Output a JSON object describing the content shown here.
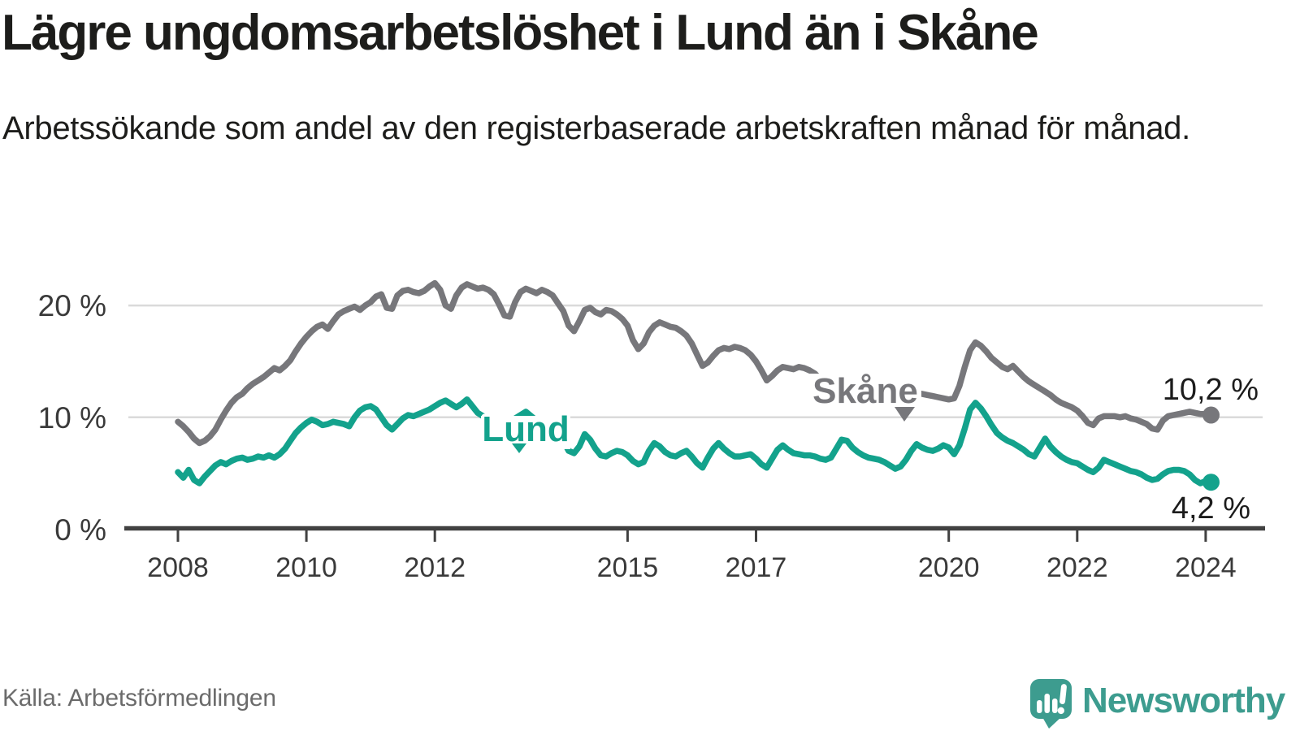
{
  "title": "Lägre ungdomsarbetslöshet i Lund än i Skåne",
  "subtitle": "Arbetssökande som andel av den registerbaserade arbetskraften månad för månad.",
  "source": "Källa: Arbetsförmedlingen",
  "logo": {
    "text": "Newsworthy",
    "color": "#3d9c8f",
    "icon": "speech-bubble-bar-chart-icon"
  },
  "colors": {
    "skane_line": "#77777b",
    "lund_line": "#13a28c",
    "gridline": "#dadada",
    "axis": "#414141",
    "text_dark": "#1d1d1b"
  },
  "chart_data": {
    "type": "line",
    "title": "Lägre ungdomsarbetslöshet i Lund än i Skåne",
    "xlabel": "",
    "ylabel": "Arbetssökande som andel av den registerbaserade arbetskraften",
    "x_unit": "year (monthly data)",
    "x_start": 2008.0,
    "x_step": 0.0833,
    "x_end": 2024.083,
    "ylim": [
      0,
      24
    ],
    "grid": "horizontal",
    "legend_position": "inline-labels",
    "x_ticks": [
      {
        "year": 2008,
        "label": "2008"
      },
      {
        "year": 2010,
        "label": "2010"
      },
      {
        "year": 2012,
        "label": "2012"
      },
      {
        "year": 2015,
        "label": "2015"
      },
      {
        "year": 2017,
        "label": "2017"
      },
      {
        "year": 2020,
        "label": "2020"
      },
      {
        "year": 2022,
        "label": "2022"
      },
      {
        "year": 2024,
        "label": "2024"
      }
    ],
    "y_ticks": [
      {
        "value": 0,
        "label": "0 %"
      },
      {
        "value": 10,
        "label": "10 %"
      },
      {
        "value": 20,
        "label": "20 %"
      }
    ],
    "series": [
      {
        "name": "Skåne",
        "color": "#77777b",
        "end_label": "10,2 %",
        "end_value": 10.2,
        "values": [
          9.6,
          9.2,
          8.7,
          8.1,
          7.7,
          7.9,
          8.3,
          8.9,
          9.8,
          10.6,
          11.3,
          11.8,
          12.1,
          12.6,
          13.0,
          13.3,
          13.6,
          14.0,
          14.4,
          14.2,
          14.6,
          15.1,
          15.9,
          16.6,
          17.2,
          17.7,
          18.1,
          18.3,
          17.9,
          18.6,
          19.2,
          19.5,
          19.7,
          19.9,
          19.6,
          20.0,
          20.3,
          20.8,
          21.0,
          19.8,
          19.7,
          20.9,
          21.3,
          21.4,
          21.2,
          21.1,
          21.3,
          21.7,
          22.0,
          21.4,
          20.0,
          19.7,
          20.9,
          21.6,
          21.9,
          21.7,
          21.5,
          21.6,
          21.4,
          21.0,
          20.1,
          19.1,
          19.0,
          20.3,
          21.2,
          21.5,
          21.3,
          21.1,
          21.4,
          21.2,
          20.9,
          20.2,
          19.5,
          18.2,
          17.7,
          18.6,
          19.6,
          19.8,
          19.4,
          19.2,
          19.6,
          19.5,
          19.2,
          18.8,
          18.2,
          16.9,
          16.1,
          16.6,
          17.6,
          18.2,
          18.5,
          18.3,
          18.1,
          18.0,
          17.7,
          17.3,
          16.6,
          15.6,
          14.6,
          14.9,
          15.5,
          16.0,
          16.2,
          16.1,
          16.3,
          16.2,
          16.0,
          15.6,
          15.0,
          14.2,
          13.3,
          13.7,
          14.2,
          14.5,
          14.4,
          14.3,
          14.5,
          14.4,
          14.2,
          13.9,
          13.4,
          12.9,
          12.5,
          12.8,
          13.2,
          13.5,
          13.4,
          13.3,
          13.4,
          13.2,
          13.0,
          12.8,
          12.5,
          12.2,
          12.0,
          12.1,
          12.2,
          12.3,
          12.2,
          12.1,
          12.0,
          11.9,
          11.8,
          11.7,
          11.6,
          11.7,
          12.8,
          14.5,
          16.0,
          16.7,
          16.4,
          15.9,
          15.3,
          14.9,
          14.5,
          14.3,
          14.6,
          14.1,
          13.6,
          13.2,
          12.9,
          12.6,
          12.3,
          12.0,
          11.6,
          11.3,
          11.1,
          10.9,
          10.6,
          10.1,
          9.5,
          9.3,
          9.9,
          10.1,
          10.1,
          10.1,
          10.0,
          10.1,
          9.9,
          9.8,
          9.6,
          9.4,
          9.0,
          8.9,
          9.7,
          10.1,
          10.2,
          10.3,
          10.4,
          10.5,
          10.4,
          10.3,
          10.3,
          10.2
        ]
      },
      {
        "name": "Lund",
        "color": "#13a28c",
        "end_label": "4,2 %",
        "end_value": 4.2,
        "values": [
          5.1,
          4.6,
          5.3,
          4.4,
          4.1,
          4.7,
          5.2,
          5.7,
          6.0,
          5.8,
          6.1,
          6.3,
          6.4,
          6.2,
          6.3,
          6.5,
          6.4,
          6.6,
          6.4,
          6.7,
          7.2,
          7.9,
          8.6,
          9.1,
          9.5,
          9.8,
          9.6,
          9.3,
          9.4,
          9.6,
          9.5,
          9.4,
          9.2,
          10.0,
          10.6,
          10.9,
          11.0,
          10.7,
          10.0,
          9.3,
          8.9,
          9.4,
          9.9,
          10.2,
          10.1,
          10.3,
          10.5,
          10.7,
          11.0,
          11.3,
          11.5,
          11.2,
          10.9,
          11.2,
          11.6,
          11.0,
          10.4,
          10.1,
          9.9,
          9.8,
          9.6,
          9.3,
          9.5,
          9.9,
          10.2,
          10.5,
          10.1,
          9.7,
          9.3,
          8.9,
          8.5,
          8.1,
          7.9,
          7.0,
          6.8,
          7.4,
          8.5,
          8.0,
          7.2,
          6.6,
          6.5,
          6.8,
          7.0,
          6.9,
          6.6,
          6.1,
          5.8,
          6.0,
          7.0,
          7.7,
          7.4,
          6.9,
          6.6,
          6.5,
          6.8,
          7.0,
          6.5,
          5.9,
          5.5,
          6.4,
          7.2,
          7.7,
          7.2,
          6.8,
          6.5,
          6.5,
          6.6,
          6.7,
          6.3,
          5.8,
          5.5,
          6.3,
          7.1,
          7.5,
          7.1,
          6.8,
          6.7,
          6.6,
          6.6,
          6.5,
          6.3,
          6.2,
          6.4,
          7.2,
          8.0,
          7.9,
          7.3,
          6.9,
          6.6,
          6.4,
          6.3,
          6.2,
          6.0,
          5.7,
          5.4,
          5.6,
          6.2,
          7.0,
          7.6,
          7.3,
          7.1,
          7.0,
          7.2,
          7.5,
          7.3,
          6.7,
          7.5,
          9.0,
          10.7,
          11.3,
          10.8,
          10.1,
          9.3,
          8.6,
          8.2,
          7.9,
          7.7,
          7.4,
          7.1,
          6.7,
          6.5,
          7.3,
          8.1,
          7.4,
          6.9,
          6.5,
          6.2,
          6.0,
          5.9,
          5.6,
          5.3,
          5.1,
          5.5,
          6.2,
          6.0,
          5.8,
          5.6,
          5.4,
          5.2,
          5.1,
          4.9,
          4.6,
          4.4,
          4.5,
          4.9,
          5.2,
          5.3,
          5.3,
          5.2,
          4.9,
          4.4,
          4.1,
          4.3,
          4.2
        ]
      }
    ]
  }
}
